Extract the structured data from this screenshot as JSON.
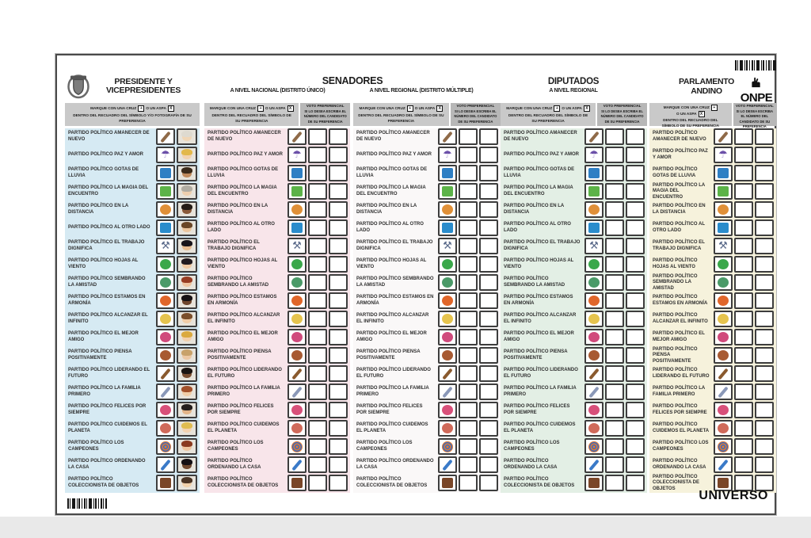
{
  "header": {
    "presidente_line1": "PRESIDENTE Y",
    "presidente_line2": "VICEPRESIDENTES",
    "senadores_title": "SENADORES",
    "senadores_sub_nacional": "A NIVEL NACIONAL (DISTRITO ÚNICO)",
    "senadores_sub_regional": "A NIVEL REGIONAL (DISTRITO MÚLTIPLE)",
    "diputados_title": "DIPUTADOS",
    "diputados_sub": "A NIVEL REGIONAL",
    "parlamento_line1": "PARLAMENTO",
    "parlamento_line2": "ANDINO",
    "onpe_label": "ONPE"
  },
  "instructions": {
    "marque_pre": "MARQUE CON UNA CRUZ",
    "cruz_symbol": "+",
    "marque_mid": "O UN ASPA",
    "aspa_symbol": "X",
    "presidente_post": "DENTRO DEL RECUADRO DEL SÍMBOLO Y/O FOTOGRAFÍA DE SU PREFERENCIA",
    "otros_post": "DENTRO DEL RECUADRO DEL SÍMBOLO DE SU PREFERENCIA",
    "preferencial_title": "VOTO PREFERENCIAL",
    "preferencial_body": "SI LO DESEA ESCRIBA EL NÚMERO DEL CANDIDATO DE SU PREFERENCIA"
  },
  "footer": {
    "universo_label": "UNIVERSO"
  },
  "colors": {
    "ballot_border": "#4a4a4a",
    "instruction_box": "#c9c9c9",
    "preferential_box": "#b7b7b7",
    "cell_border": "#3d3d3d",
    "barcode": "#161616"
  },
  "columns": [
    {
      "id": "presidente-vicepresidentes",
      "kind": "photo",
      "band_color": "#d6eaf3"
    },
    {
      "id": "senadores-nacional",
      "kind": "pref",
      "band_color": "#f8e5ea"
    },
    {
      "id": "senadores-regional",
      "kind": "pref",
      "band_color": "#faf8f8"
    },
    {
      "id": "diputados-regional",
      "kind": "pref",
      "band_color": "#e3efe5"
    },
    {
      "id": "parlamento-andino",
      "kind": "pref",
      "band_color": "#f6f2dc"
    }
  ],
  "parties": [
    {
      "name": "PARTIDO POLÍTICO AMANECER DE NUEVO",
      "icon": "pencil-icon",
      "symbol": {
        "shape": "diagonal",
        "color": "#8f6a48"
      },
      "avatar": {
        "skin": "#f0d6b6",
        "hair": "#dedad0"
      }
    },
    {
      "name": "PARTIDO POLÍTICO PAZ Y AMOR",
      "icon": "umbrella-icon",
      "symbol": {
        "shape": "glyph",
        "char": "☂",
        "color": "#6b4fa8"
      },
      "avatar": {
        "skin": "#f2d2ae",
        "hair": "#e2b84a"
      }
    },
    {
      "name": "PARTIDO POLÍTICO GOTAS DE LLUVIA",
      "icon": "raindrop-icon",
      "symbol": {
        "shape": "square",
        "color": "#2e7fc4"
      },
      "avatar": {
        "skin": "#c08a5c",
        "hair": "#3a2a1a"
      }
    },
    {
      "name": "PARTIDO POLÍTICO LA MAGIA DEL ENCUENTRO",
      "icon": "tshirt-icon",
      "symbol": {
        "shape": "square",
        "color": "#5cb348"
      },
      "avatar": {
        "skin": "#eecfae",
        "hair": "#b0aca2"
      }
    },
    {
      "name": "PARTIDO POLÍTICO EN LA DISTANCIA",
      "icon": "bread-icon",
      "symbol": {
        "shape": "circle",
        "color": "#e09038"
      },
      "avatar": {
        "skin": "#8a5a3a",
        "hair": "#241c16"
      }
    },
    {
      "name": "PARTIDO POLÍTICO AL OTRO LADO",
      "icon": "blue-square-icon",
      "symbol": {
        "shape": "square",
        "color": "#2a8ccc"
      },
      "avatar": {
        "skin": "#ecc69e",
        "hair": "#6a4626"
      }
    },
    {
      "name": "PARTIDO POLÍTICO EL TRABAJO DIGNIFICA",
      "icon": "hammer-icon",
      "symbol": {
        "shape": "glyph",
        "char": "⚒",
        "color": "#5a6a8a"
      },
      "avatar": {
        "skin": "#e8bc90",
        "hair": "#18141a"
      }
    },
    {
      "name": "PARTIDO POLÍTICO HOJAS AL VIENTO",
      "icon": "leaf-icon",
      "symbol": {
        "shape": "circle",
        "color": "#3aa84a"
      },
      "avatar": {
        "skin": "#f0c8a2",
        "hair": "#201a20"
      }
    },
    {
      "name": "PARTIDO POLÍTICO SEMBRANDO LA AMISTAD",
      "icon": "plants-icon",
      "symbol": {
        "shape": "circle",
        "color": "#4a9a68"
      },
      "avatar": {
        "skin": "#eec4a0",
        "hair": "#973c22"
      }
    },
    {
      "name": "PARTIDO POLÍTICO ESTAMOS EN ARMONÍA",
      "icon": "fish-icon",
      "symbol": {
        "shape": "circle",
        "color": "#e0662a"
      },
      "avatar": {
        "skin": "#6e452c",
        "hair": "#161214"
      }
    },
    {
      "name": "PARTIDO POLÍTICO ALCANZAR EL INFINITO",
      "icon": "seahorse-icon",
      "symbol": {
        "shape": "circle",
        "color": "#e6c44e"
      },
      "avatar": {
        "skin": "#f0cca6",
        "hair": "#7a4e2a"
      }
    },
    {
      "name": "PARTIDO POLÍTICO EL MEJOR AMIGO",
      "icon": "butterfly-icon",
      "symbol": {
        "shape": "circle",
        "color": "#d04a7c"
      },
      "avatar": {
        "skin": "#f2d0ac",
        "hair": "#daa93e"
      }
    },
    {
      "name": "PARTIDO POLÍTICO PIENSA POSITIVAMENTE",
      "icon": "curls-icon",
      "symbol": {
        "shape": "circle",
        "color": "#a85a32"
      },
      "avatar": {
        "skin": "#ecc8a4",
        "hair": "#c8a26a"
      }
    },
    {
      "name": "PARTIDO POLÍTICO LIDERANDO EL FUTURO",
      "icon": "violin-icon",
      "symbol": {
        "shape": "diagonal",
        "color": "#8a5a2e"
      },
      "avatar": {
        "skin": "#7a4e30",
        "hair": "#1a1512"
      }
    },
    {
      "name": "PARTIDO POLÍTICO LA FAMILIA PRIMERO",
      "icon": "feather-icon",
      "symbol": {
        "shape": "diagonal",
        "color": "#8a98b8"
      },
      "avatar": {
        "skin": "#f0cea8",
        "hair": "#a1502a"
      }
    },
    {
      "name": "PARTIDO POLÍTICO FELICES POR SIEMPRE",
      "icon": "flamingo-icon",
      "symbol": {
        "shape": "circle",
        "color": "#d8507a"
      },
      "avatar": {
        "skin": "#e2b488",
        "hair": "#241e1c"
      }
    },
    {
      "name": "PARTIDO POLÍTICO CUIDEMOS EL PLANETA",
      "icon": "bicycle-icon",
      "symbol": {
        "shape": "circle",
        "color": "#d06a5a"
      },
      "avatar": {
        "skin": "#f2d2b0",
        "hair": "#e0bc50"
      }
    },
    {
      "name": "PARTIDO POLÍTICO LOS CAMPEONES",
      "icon": "target-icon",
      "symbol": {
        "shape": "spiral",
        "color": "#e07a32",
        "color2": "#3a6ac0"
      },
      "avatar": {
        "skin": "#eec6a0",
        "hair": "#8a3a20"
      }
    },
    {
      "name": "PARTIDO POLÍTICO ORDENANDO LA CASA",
      "icon": "dustpan-icon",
      "symbol": {
        "shape": "diagonal",
        "color": "#3a7ac8"
      },
      "avatar": {
        "skin": "#70482e",
        "hair": "#141014"
      }
    },
    {
      "name": "PARTIDO POLÍTICO COLECCIONISTA DE OBJETOS",
      "icon": "briefcase-icon",
      "symbol": {
        "shape": "square",
        "color": "#7a4628"
      },
      "avatar": {
        "skin": "#f0d0aa",
        "hair": "#4a3424"
      }
    }
  ]
}
